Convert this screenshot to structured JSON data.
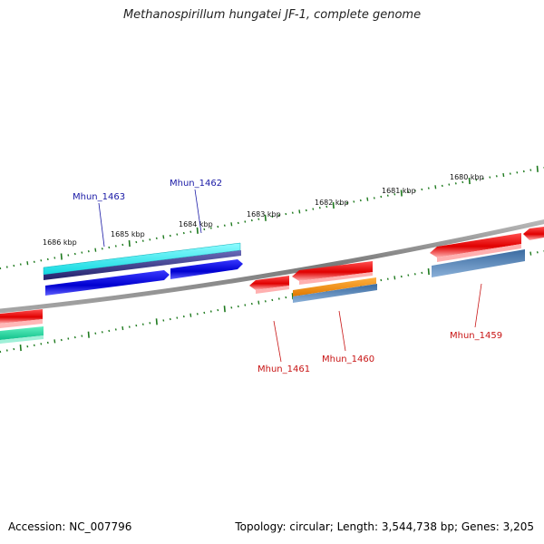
{
  "title": "Methanospirillum hungatei JF-1, complete genome",
  "footer": {
    "accession": "Accession: NC_007796",
    "stats": "Topology: circular; Length: 3,544,738 bp; Genes: 3,205"
  },
  "colors": {
    "backbone": "#8a8a8a",
    "tick": "#1e7a1e",
    "forward_label": "#1a1aa6",
    "reverse_label": "#c81414",
    "red_feature": "#e60000",
    "blue_feature": "#0000dd",
    "cyan_feature": "#22e0e8",
    "orange_feature": "#f08a00",
    "steel_feature": "#4a7ab0",
    "green_feature": "#22d29a"
  },
  "scale_labels": [
    "1686 kbp",
    "1685 kbp",
    "1684 kbp",
    "1683 kbp",
    "1682 kbp",
    "1681 kbp",
    "1680 kbp"
  ],
  "genes": [
    {
      "name": "Mhun_1463",
      "strand": "forward"
    },
    {
      "name": "Mhun_1462",
      "strand": "forward"
    },
    {
      "name": "Mhun_1461",
      "strand": "reverse"
    },
    {
      "name": "Mhun_1460",
      "strand": "reverse"
    },
    {
      "name": "Mhun_1459",
      "strand": "reverse"
    }
  ]
}
